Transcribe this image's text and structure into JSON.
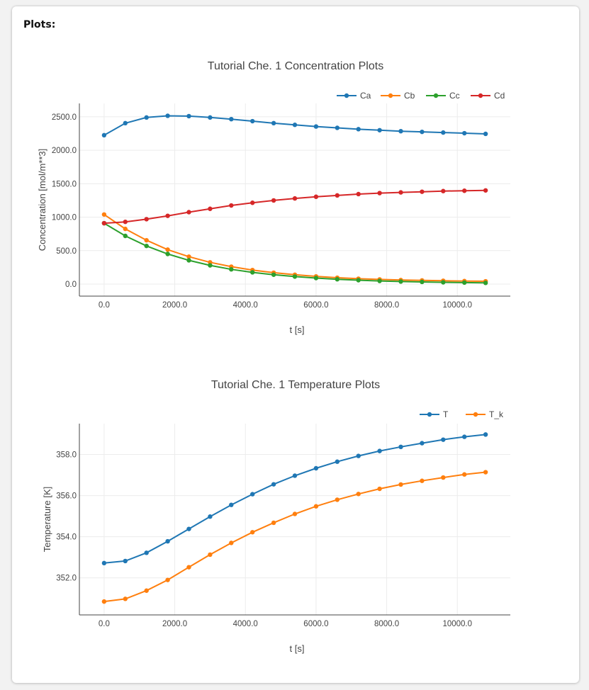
{
  "heading": "Plots:",
  "chart_data": [
    {
      "type": "line",
      "title": "Tutorial Che. 1 Concentration Plots",
      "xlabel": "t [s]",
      "ylabel": "Concentration [mol/m**3]",
      "xlim": [
        -700,
        11500
      ],
      "ylim": [
        -180,
        2700
      ],
      "xticks": [
        0,
        2000,
        4000,
        6000,
        8000,
        10000
      ],
      "xtick_labels": [
        "0.0",
        "2000.0",
        "4000.0",
        "6000.0",
        "8000.0",
        "10000.0"
      ],
      "yticks": [
        0,
        500,
        1000,
        1500,
        2000,
        2500
      ],
      "ytick_labels": [
        "0.0",
        "500.0",
        "1000.0",
        "1500.0",
        "2000.0",
        "2500.0"
      ],
      "grid": true,
      "legend_position": "top-right",
      "x": [
        0,
        600,
        1200,
        1800,
        2400,
        3000,
        3600,
        4200,
        4800,
        5400,
        6000,
        6600,
        7200,
        7800,
        8400,
        9000,
        9600,
        10200,
        10800
      ],
      "series": [
        {
          "name": "Ca",
          "color": "#1f77b4",
          "values": [
            2225,
            2405,
            2490,
            2515,
            2510,
            2490,
            2465,
            2435,
            2405,
            2380,
            2355,
            2335,
            2315,
            2300,
            2285,
            2275,
            2265,
            2255,
            2245
          ]
        },
        {
          "name": "Cb",
          "color": "#ff7f0e",
          "values": [
            1040,
            825,
            655,
            515,
            410,
            325,
            260,
            210,
            170,
            140,
            115,
            95,
            80,
            70,
            60,
            55,
            50,
            45,
            42
          ]
        },
        {
          "name": "Cc",
          "color": "#2ca02c",
          "values": [
            910,
            720,
            570,
            450,
            355,
            280,
            220,
            175,
            140,
            112,
            90,
            72,
            58,
            47,
            38,
            32,
            26,
            22,
            18
          ]
        },
        {
          "name": "Cd",
          "color": "#d62728",
          "values": [
            910,
            930,
            970,
            1020,
            1075,
            1125,
            1175,
            1215,
            1250,
            1280,
            1305,
            1325,
            1345,
            1360,
            1370,
            1380,
            1390,
            1395,
            1400
          ]
        }
      ]
    },
    {
      "type": "line",
      "title": "Tutorial Che. 1 Temperature Plots",
      "xlabel": "t [s]",
      "ylabel": "Temperature [K]",
      "xlim": [
        -700,
        11500
      ],
      "ylim": [
        350.2,
        359.5
      ],
      "xticks": [
        0,
        2000,
        4000,
        6000,
        8000,
        10000
      ],
      "xtick_labels": [
        "0.0",
        "2000.0",
        "4000.0",
        "6000.0",
        "8000.0",
        "10000.0"
      ],
      "yticks": [
        352,
        354,
        356,
        358
      ],
      "ytick_labels": [
        "352.0",
        "354.0",
        "356.0",
        "358.0"
      ],
      "grid": true,
      "legend_position": "top-right",
      "x": [
        0,
        600,
        1200,
        1800,
        2400,
        3000,
        3600,
        4200,
        4800,
        5400,
        6000,
        6600,
        7200,
        7800,
        8400,
        9000,
        9600,
        10200,
        10800
      ],
      "series": [
        {
          "name": "T",
          "color": "#1f77b4",
          "values": [
            352.72,
            352.82,
            353.22,
            353.78,
            354.38,
            354.98,
            355.55,
            356.07,
            356.55,
            356.97,
            357.33,
            357.65,
            357.93,
            358.17,
            358.37,
            358.55,
            358.72,
            358.86,
            358.97
          ]
        },
        {
          "name": "T_k",
          "color": "#ff7f0e",
          "values": [
            350.85,
            350.98,
            351.38,
            351.9,
            352.52,
            353.13,
            353.7,
            354.22,
            354.68,
            355.11,
            355.48,
            355.8,
            356.08,
            356.33,
            356.54,
            356.72,
            356.88,
            357.03,
            357.14
          ]
        }
      ]
    }
  ]
}
